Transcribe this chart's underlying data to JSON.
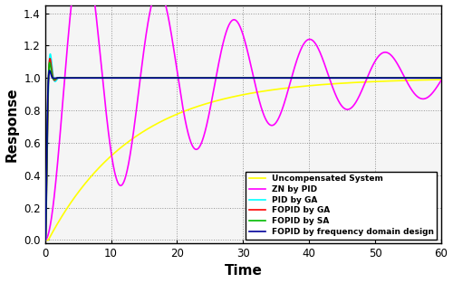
{
  "xlabel": "Time",
  "ylabel": "Response",
  "xlim": [
    0,
    60
  ],
  "ylim": [
    -0.02,
    1.45
  ],
  "yticks": [
    0,
    0.2,
    0.4,
    0.6,
    0.8,
    1.0,
    1.2,
    1.4
  ],
  "xticks": [
    0,
    10,
    20,
    30,
    40,
    50,
    60
  ],
  "legend": [
    "Uncompensated System",
    "ZN by PID",
    "PID by GA",
    "FOPID by GA",
    "FOPID by SA",
    "FOPID by frequency domain design"
  ],
  "colors": {
    "uncompensated": "#FFFF00",
    "zn_pid": "#FF00FF",
    "pid_ga": "#00FFFF",
    "fopid_ga": "#FF0000",
    "fopid_sa": "#00BB00",
    "fopid_freq": "#000099"
  },
  "figsize": [
    5.0,
    3.13
  ],
  "dpi": 100,
  "bg_color": "#f5f5f5"
}
